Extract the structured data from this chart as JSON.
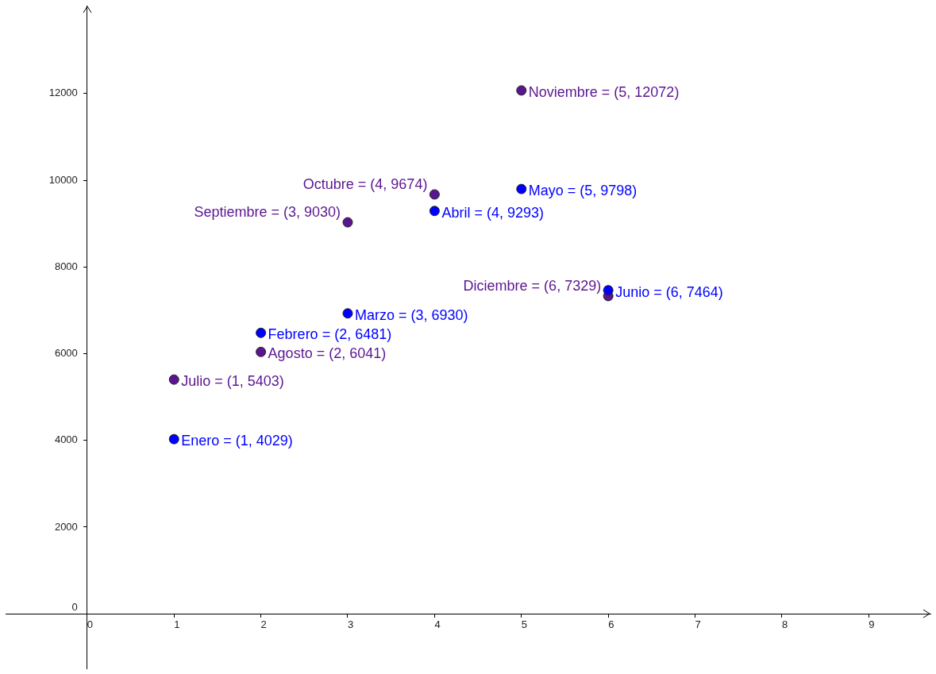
{
  "chart_data": {
    "type": "scatter",
    "xlim": [
      -0.94,
      9.71
    ],
    "ylim": [
      -1260,
      14030
    ],
    "xticks": [
      0,
      1,
      2,
      3,
      4,
      5,
      6,
      7,
      8,
      9
    ],
    "yticks": [
      0,
      2000,
      4000,
      6000,
      8000,
      10000,
      12000
    ],
    "grid": false,
    "legend": false,
    "marker": "circle",
    "series": [
      {
        "color": "#0000ff",
        "x": [
          1,
          2,
          3,
          4,
          5,
          6
        ],
        "values": [
          4029,
          6481,
          6930,
          9293,
          9798,
          7464
        ],
        "value_labels": [
          "Enero = (1, 4029)",
          "Febrero = (2, 6481)",
          "Marzo = (3, 6930)",
          "Abril = (4, 9293)",
          "Mayo = (5, 9798)",
          "Junio = (6, 7464)"
        ]
      },
      {
        "color": "#5a1590",
        "x": [
          1,
          2,
          3,
          4,
          5,
          6
        ],
        "values": [
          5403,
          6041,
          9030,
          9674,
          12072,
          7329
        ],
        "value_labels": [
          "Julio = (1, 5403)",
          "Agosto = (2, 6041)",
          "Septiembre = (3, 9030)",
          "Octubre = (4, 9674)",
          "Noviembre = (5, 12072)",
          "Diciembre = (6, 7329)"
        ]
      }
    ]
  }
}
